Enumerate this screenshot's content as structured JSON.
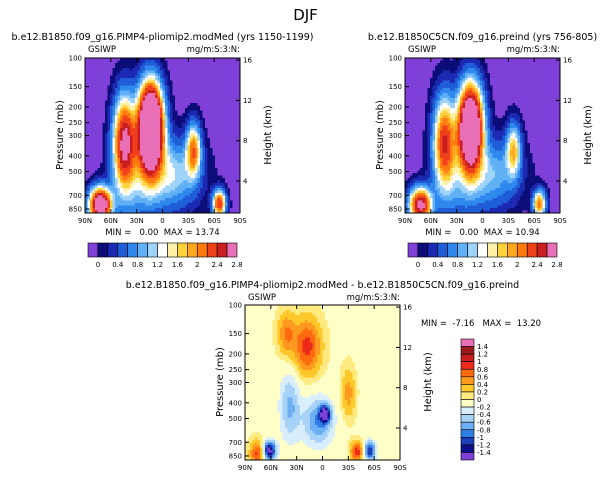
{
  "page": {
    "season": "DJF"
  },
  "chart_data": [
    {
      "type": "heatmap",
      "title": "b.e12.B1850.f09_g16.PIMP4-pliomip2.modMed (yrs 1150-1199)",
      "left_label": "GSIWP",
      "right_label": "mg/m:S:3:N:",
      "xlabel": "",
      "ylabel": "Pressure (mb)",
      "y2label": "Height (km)",
      "x_ticks": [
        "90N",
        "60N",
        "30N",
        "0",
        "30S",
        "60S",
        "90S"
      ],
      "y_ticks": [
        "100",
        "150",
        "200",
        "250",
        "300",
        "400",
        "500",
        "700",
        "850"
      ],
      "y2_ticks": [
        "16",
        "12",
        "8",
        "4"
      ],
      "stats_text": "MIN =   0.00  MAX = 13.74",
      "min": 0.0,
      "max": 13.74,
      "peak_lat": 15,
      "peak_lev": 270,
      "colorbar": "abs"
    },
    {
      "type": "heatmap",
      "title": "b.e12.B1850C5CN.f09_g16.preind (yrs 756-805)",
      "left_label": "GSIWP",
      "right_label": "mg/m:S:3:N:",
      "xlabel": "",
      "ylabel": "Pressure (mb)",
      "y2label": "Height (km)",
      "x_ticks": [
        "90N",
        "60N",
        "30N",
        "0",
        "30S",
        "60S",
        "90S"
      ],
      "y_ticks": [
        "100",
        "150",
        "200",
        "250",
        "300",
        "400",
        "500",
        "700",
        "850"
      ],
      "y2_ticks": [
        "16",
        "12",
        "8",
        "4"
      ],
      "stats_text": "MIN =   0.00  MAX = 10.94",
      "min": 0.0,
      "max": 10.94,
      "peak_lat": 15,
      "peak_lev": 270,
      "colorbar": "abs"
    },
    {
      "type": "heatmap",
      "title": "b.e12.B1850.f09_g16.PIMP4-pliomip2.modMed - b.e12.B1850C5CN.f09_g16.preind",
      "left_label": "GSIWP",
      "right_label": "mg/m:S:3:N:",
      "xlabel": "",
      "ylabel": "Pressure (mb)",
      "y2label": "Height (km)",
      "x_ticks": [
        "90N",
        "60N",
        "30N",
        "0",
        "30S",
        "60S",
        "90S"
      ],
      "y_ticks": [
        "100",
        "150",
        "200",
        "250",
        "300",
        "400",
        "500",
        "700",
        "850"
      ],
      "y2_ticks": [
        "16",
        "12",
        "8",
        "4"
      ],
      "stats_text": "MIN =  -7.16   MAX =  13.20",
      "min": -7.16,
      "max": 13.2,
      "colorbar": "diff"
    }
  ],
  "colorbars": {
    "abs": {
      "labels": [
        "0",
        "0.4",
        "0.8",
        "1.2",
        "1.6",
        "2",
        "2.4",
        "2.8"
      ],
      "colors": [
        "#7f3fd9",
        "#0d0d7a",
        "#1c2ab3",
        "#1f5dd6",
        "#2f88ee",
        "#5fb0f5",
        "#9fd3fa",
        "#ffffff",
        "#fff2a8",
        "#ffd23a",
        "#ffa820",
        "#ff7a10",
        "#f0401c",
        "#c81e1e",
        "#e96fb8"
      ]
    },
    "diff": {
      "labels": [
        "1.4",
        "1.2",
        "1",
        "0.8",
        "0.6",
        "0.4",
        "0.2",
        "0",
        "-0.2",
        "-0.4",
        "-0.6",
        "-0.8",
        "-1",
        "-1.2",
        "-1.4"
      ],
      "colors": [
        "#e96fb8",
        "#9a1c1c",
        "#c81e1e",
        "#ee2a1a",
        "#ff6a10",
        "#ff9a20",
        "#ffc82a",
        "#ffea80",
        "#ffffc8",
        "#d8eefc",
        "#a6d2f8",
        "#6eaef2",
        "#2f7ee6",
        "#1c3fba",
        "#10108a",
        "#7f3fd9"
      ]
    }
  }
}
